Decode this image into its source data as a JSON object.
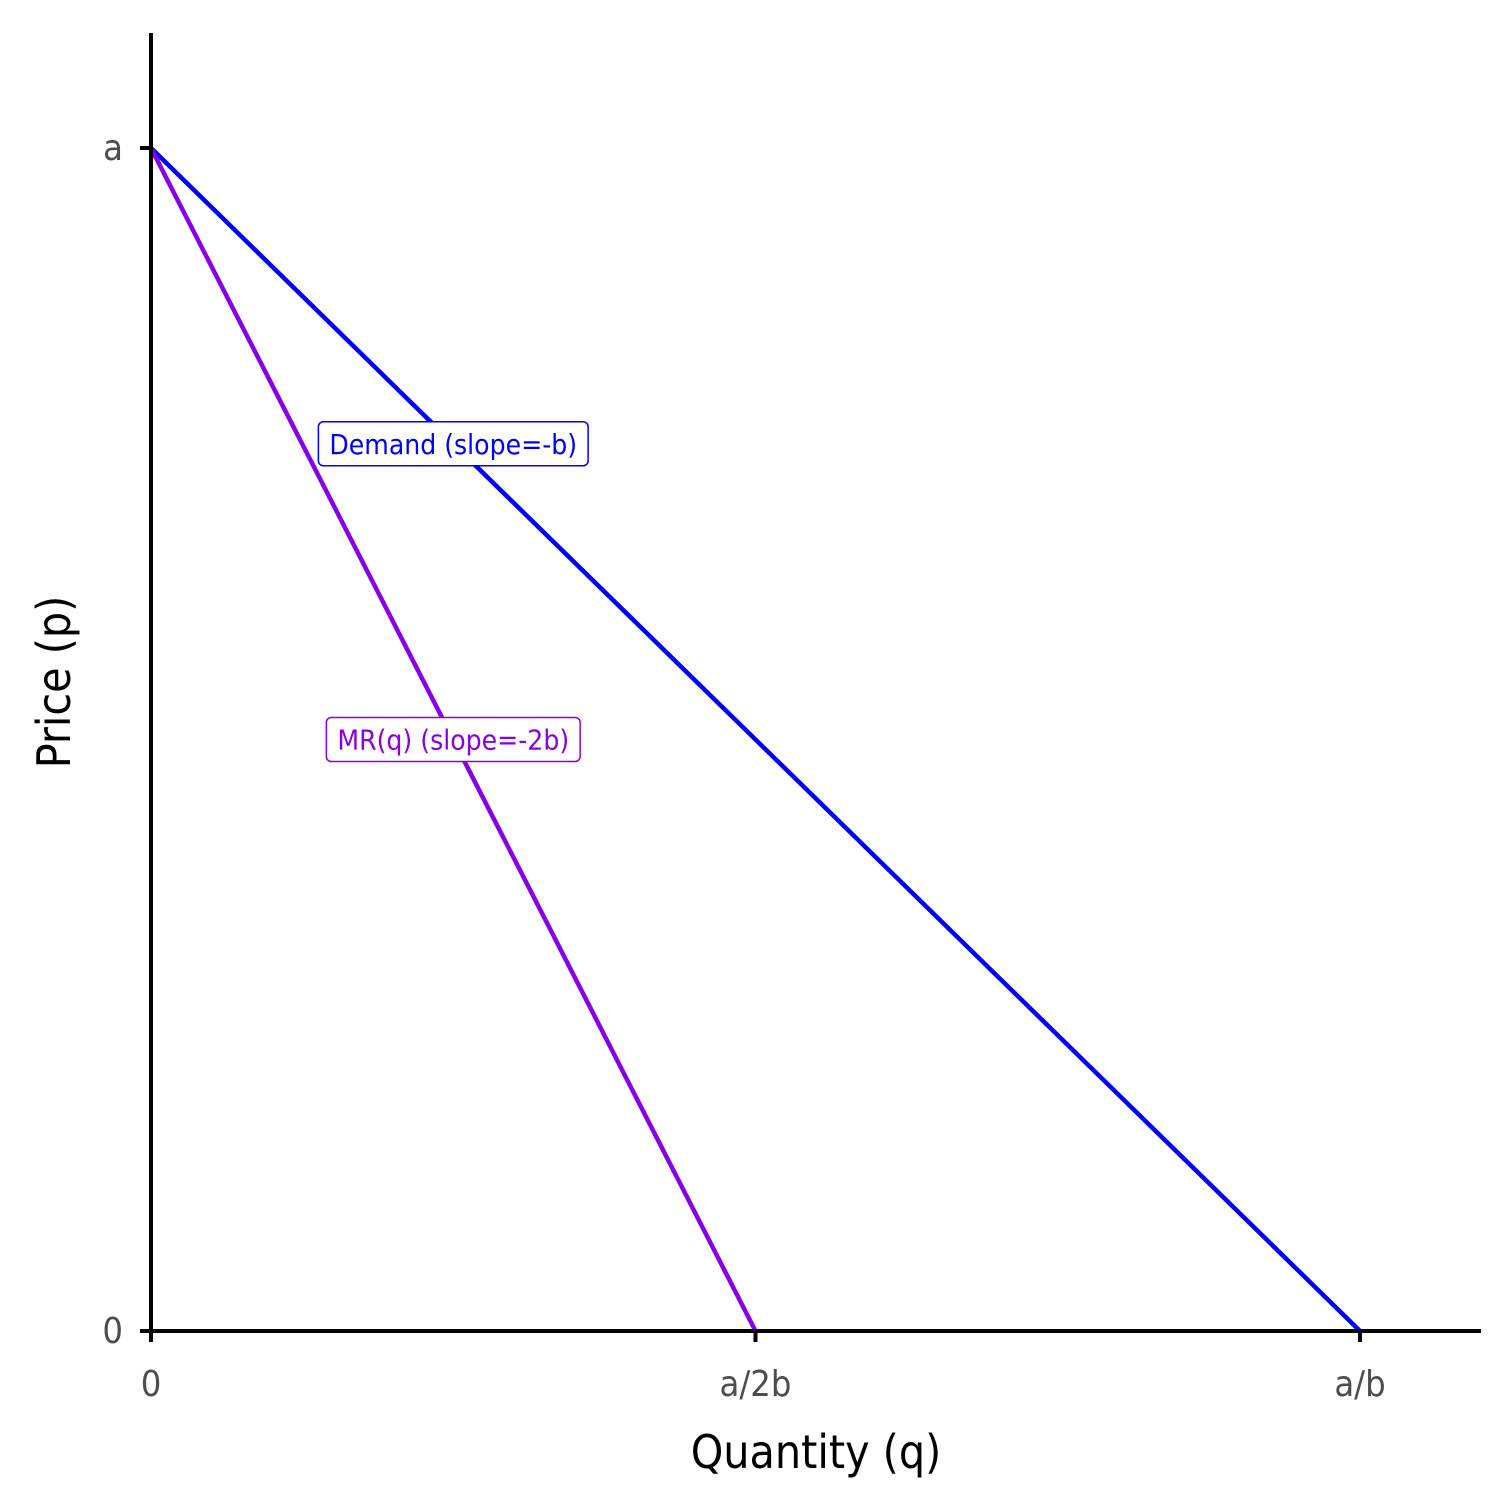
{
  "chart_data": {
    "type": "line",
    "xlabel": "Quantity (q)",
    "ylabel": "Price (p)",
    "xlim": [
      0,
      1.1
    ],
    "ylim": [
      0,
      1.1
    ],
    "x_ticks": [
      {
        "value": 0,
        "label": "0"
      },
      {
        "value": 0.5,
        "label": "a/2b"
      },
      {
        "value": 1,
        "label": "a/b"
      }
    ],
    "y_ticks": [
      {
        "value": 0,
        "label": "0"
      },
      {
        "value": 1,
        "label": "a"
      }
    ],
    "grid": false,
    "series": [
      {
        "label": "Demand (slope=-b)",
        "color": "#0000ff",
        "x": [
          0,
          1
        ],
        "y": [
          1,
          0
        ],
        "label_at": [
          0.25,
          0.75
        ]
      },
      {
        "label": "MR(q) (slope=-2b)",
        "color": "#8a00e6",
        "x": [
          0,
          0.5
        ],
        "y": [
          1,
          0
        ],
        "label_at": [
          0.25,
          0.5
        ]
      }
    ]
  }
}
